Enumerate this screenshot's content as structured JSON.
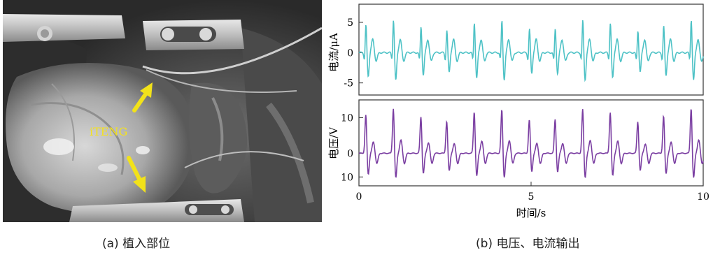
{
  "photo": {
    "label": "iTENG",
    "label_color": "#f5e21c",
    "arrow_color": "#f2e21a"
  },
  "captions": {
    "a": "(a) 植入部位",
    "b": "(b) 电压、电流输出"
  },
  "chart_data": [
    {
      "type": "line",
      "title": "",
      "xlabel": "时间/s",
      "ylabel": "电流/μA",
      "xlim": [
        0,
        10
      ],
      "ylim": [
        -7,
        8
      ],
      "yticks": [
        5,
        0,
        -5
      ],
      "xticks": [
        0,
        5,
        10
      ],
      "grid": false,
      "series": [
        {
          "color": "#4ec2c6",
          "peaks": [
            0.2,
            1.0,
            1.8,
            2.55,
            3.35,
            4.15,
            4.95,
            5.7,
            6.5,
            7.3,
            8.1,
            8.85,
            9.65
          ],
          "peak_max": 6.2,
          "trough_min": -5.8,
          "baseline": 0
        }
      ]
    },
    {
      "type": "line",
      "title": "",
      "xlabel": "时间/s",
      "ylabel": "电压/V",
      "xlim": [
        0,
        10
      ],
      "ylim": [
        -11,
        18
      ],
      "yticks": [
        10,
        0,
        10
      ],
      "xticks": [
        0,
        5,
        10
      ],
      "grid": false,
      "series": [
        {
          "color": "#7b3fa2",
          "peaks": [
            0.2,
            1.0,
            1.8,
            2.55,
            3.35,
            4.15,
            4.95,
            5.7,
            6.5,
            7.3,
            8.1,
            8.85,
            9.65
          ],
          "peak_max": 15.5,
          "trough_min": -9.5,
          "baseline": 0
        }
      ]
    }
  ]
}
